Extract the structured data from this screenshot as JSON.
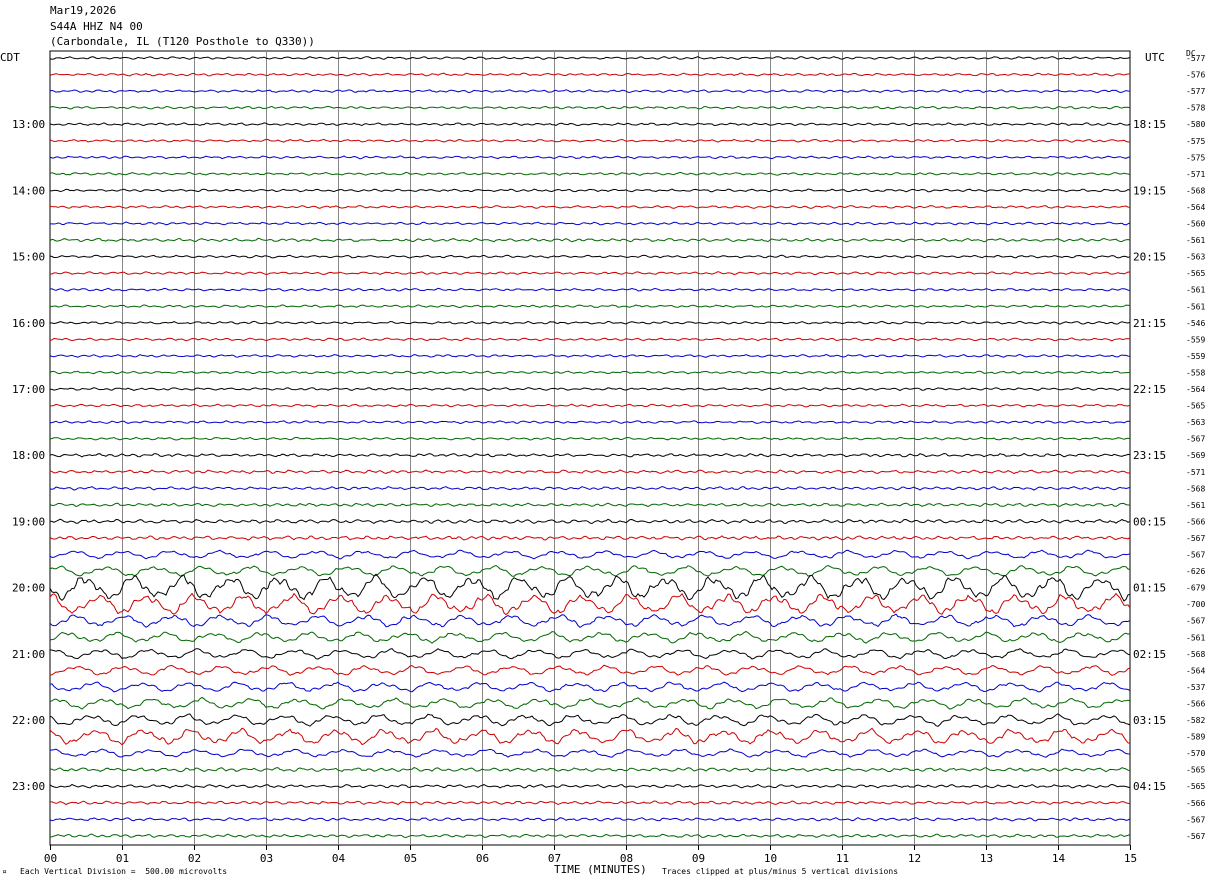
{
  "header": {
    "date": "Mar19,2026",
    "station": "S44A HHZ N4 00",
    "location": "(Carbondale, IL (T120 Posthole to Q330))"
  },
  "left_timezone": "CDT",
  "right_timezone": "UTC",
  "dc_label": "DC",
  "footer": {
    "scale_note": "Each Vertical Division =  500.00 microvolts",
    "xlabel": "TIME (MINUTES)",
    "clip_note": "Traces clipped at plus/minus 5 vertical divisions"
  },
  "colors": {
    "trace_cycle": [
      "#000000",
      "#cc0000",
      "#0000cc",
      "#006600"
    ],
    "grid": "#888888"
  },
  "chart_data": {
    "type": "line",
    "x_range_minutes": [
      0,
      15
    ],
    "x_ticks": [
      "00",
      "01",
      "02",
      "03",
      "04",
      "05",
      "06",
      "07",
      "08",
      "09",
      "10",
      "11",
      "12",
      "13",
      "14",
      "15"
    ],
    "grid": true,
    "trace_count": 48,
    "left_hour_labels": [
      "13:00",
      "14:00",
      "15:00",
      "16:00",
      "17:00",
      "18:00",
      "19:00",
      "20:00",
      "21:00",
      "22:00",
      "23:00"
    ],
    "right_hour_labels": [
      "18:15",
      "19:15",
      "20:15",
      "21:15",
      "22:15",
      "23:15",
      "00:15",
      "01:15",
      "02:15",
      "03:15",
      "04:15"
    ],
    "dc_offsets": [
      "-577",
      "-576",
      "-577",
      "-578",
      "-580",
      "-575",
      "-575",
      "-571",
      "-568",
      "-564",
      "-560",
      "-561",
      "-563",
      "-565",
      "-561",
      "-561",
      "-546",
      "-559",
      "-559",
      "-558",
      "-564",
      "-565",
      "-563",
      "-567",
      "-569",
      "-571",
      "-568",
      "-561",
      "-566",
      "-567",
      "-567",
      "-626",
      "-679",
      "-700",
      "-567",
      "-561",
      "-568",
      "-564",
      "-537",
      "-566",
      "-582",
      "-589",
      "-570",
      "-565",
      "-565",
      "-566",
      "-567",
      "-567"
    ],
    "trace_amplitude_divisions": [
      0.4,
      0.4,
      0.4,
      0.4,
      0.4,
      0.4,
      0.4,
      0.4,
      0.4,
      0.4,
      0.4,
      0.5,
      0.4,
      0.4,
      0.4,
      0.4,
      0.4,
      0.4,
      0.4,
      0.4,
      0.4,
      0.4,
      0.4,
      0.4,
      0.5,
      0.5,
      0.5,
      0.5,
      0.6,
      0.6,
      1.0,
      1.3,
      3.0,
      2.5,
      1.5,
      1.3,
      1.2,
      1.2,
      1.2,
      1.3,
      1.4,
      1.9,
      1.0,
      0.6,
      0.5,
      0.5,
      0.5,
      0.5
    ]
  }
}
